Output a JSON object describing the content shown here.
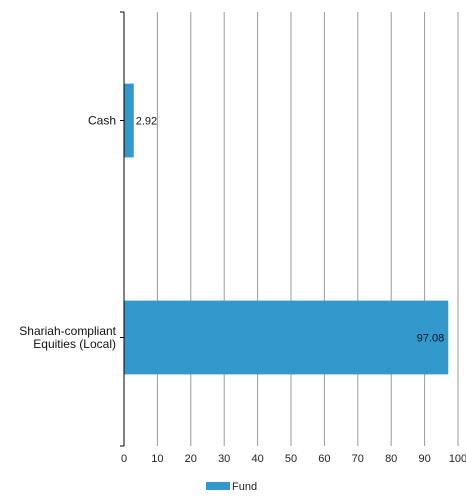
{
  "chart_data": {
    "type": "bar",
    "orientation": "horizontal",
    "categories": [
      "Cash",
      "Shariah-compliant Equities (Local)"
    ],
    "category_lines": [
      [
        "Cash"
      ],
      [
        "Shariah-compliant",
        "Equities (Local)"
      ]
    ],
    "series": [
      {
        "name": "Fund",
        "values": [
          2.92,
          97.08
        ],
        "color": "#3399cc"
      }
    ],
    "data_labels": [
      "2.92",
      "97.08"
    ],
    "x_ticks": [
      "0",
      "10",
      "20",
      "30",
      "40",
      "50",
      "60",
      "70",
      "80",
      "90",
      "100"
    ],
    "xlim": [
      0,
      100
    ],
    "grid": "vertical",
    "legend_position": "bottom-center",
    "title": "",
    "xlabel": "",
    "ylabel": ""
  }
}
